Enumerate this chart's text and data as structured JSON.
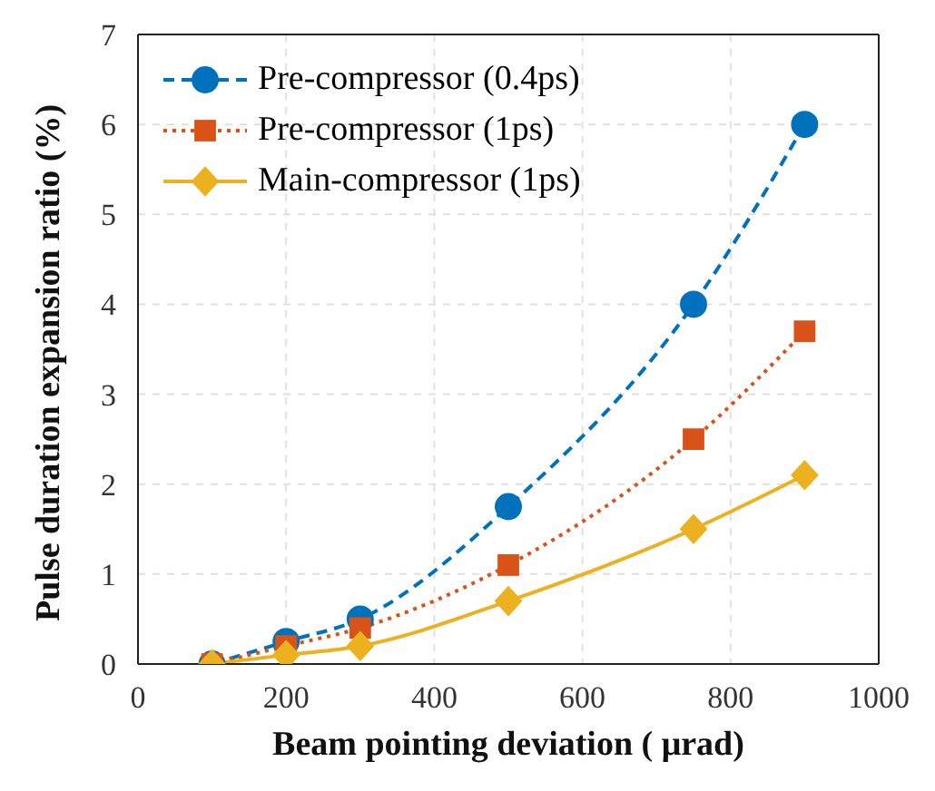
{
  "chart_data": {
    "type": "line",
    "xlabel": "Beam pointing deviation ( μrad)",
    "ylabel": "Pulse duration expansion ratio (%)",
    "x": [
      100,
      200,
      300,
      500,
      750,
      900
    ],
    "xlim": [
      0,
      1000
    ],
    "xticks": [
      0,
      200,
      400,
      600,
      800,
      1000
    ],
    "ylim": [
      0,
      7
    ],
    "yticks": [
      0,
      1,
      2,
      3,
      4,
      5,
      6,
      7
    ],
    "grid": true,
    "legend": "top left",
    "series": [
      {
        "name": "Pre-compressor (0.4ps)",
        "color": "#0072bd",
        "marker": "circle",
        "line_style": "dashed",
        "values": [
          0,
          0.25,
          0.5,
          1.75,
          4,
          6
        ]
      },
      {
        "name": "Pre-compressor (1ps)",
        "color": "#d95319",
        "marker": "square",
        "line_style": "dotted",
        "values": [
          0,
          0.2,
          0.4,
          1.1,
          2.5,
          3.7
        ]
      },
      {
        "name": "Main-compressor (1ps)",
        "color": "#edb120",
        "marker": "diamond",
        "line_style": "solid",
        "values": [
          0,
          0.1,
          0.2,
          0.7,
          1.5,
          2.1
        ]
      }
    ]
  }
}
